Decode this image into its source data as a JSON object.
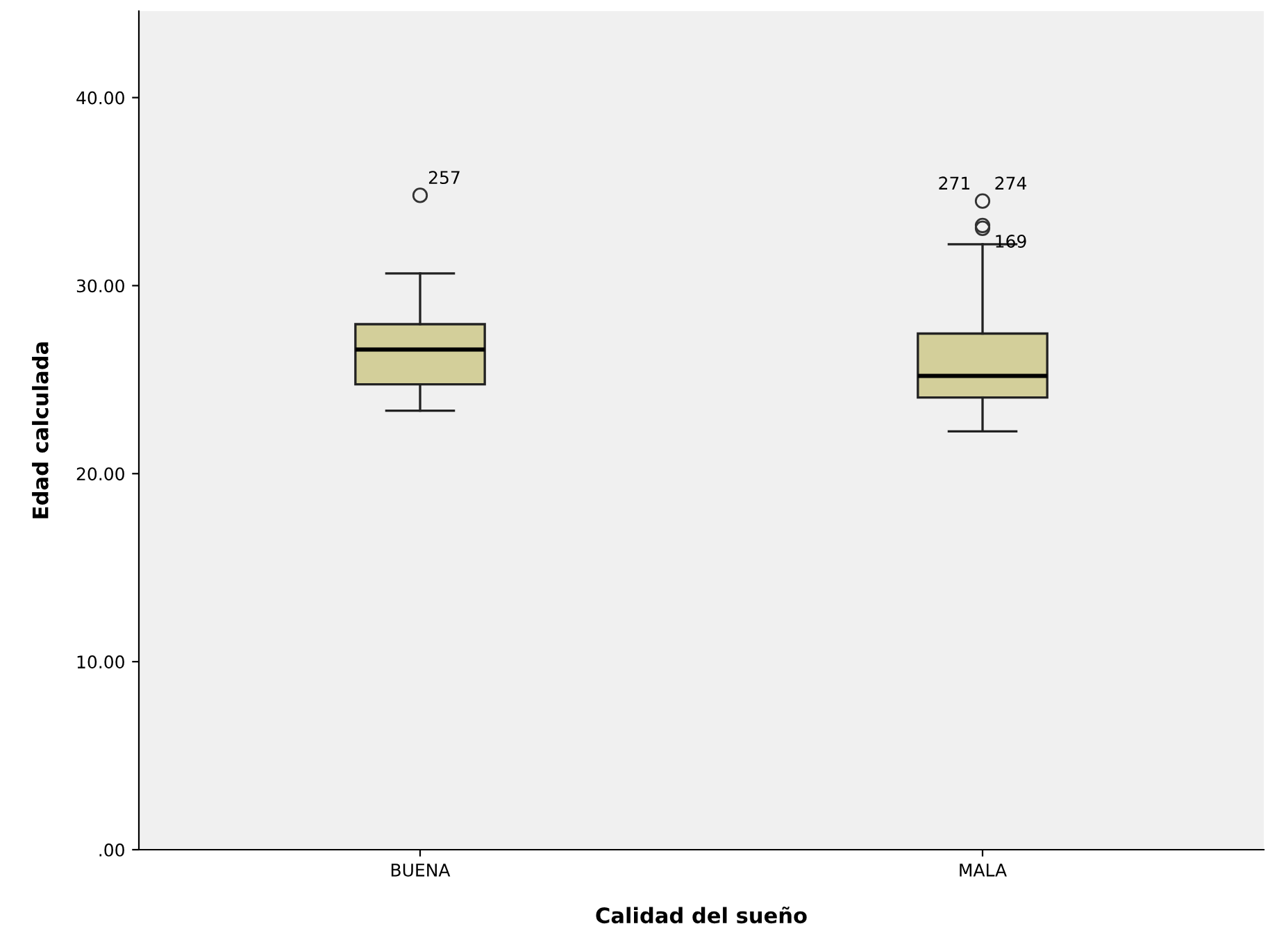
{
  "chart_data": {
    "type": "box",
    "xlabel": "Calidad del sueño",
    "ylabel": "Edad calculada",
    "categories": [
      "BUENA",
      "MALA"
    ],
    "color": "#d3cf9a",
    "boxes": [
      {
        "low": 23.35,
        "q1": 24.75,
        "median": 26.6,
        "q3": 27.95,
        "high": 30.65,
        "outliers": [
          34.8
        ]
      },
      {
        "low": 22.25,
        "q1": 24.05,
        "median": 25.2,
        "q3": 27.45,
        "high": 32.2,
        "outliers": [
          34.5,
          33.2,
          33.05
        ]
      }
    ],
    "ylim": [
      0,
      44.6
    ],
    "yticks": [
      {
        "value": 0,
        "label": ".00"
      },
      {
        "value": 10,
        "label": "10.00"
      },
      {
        "value": 20,
        "label": "20.00"
      },
      {
        "value": 30,
        "label": "30.00"
      },
      {
        "value": 40,
        "label": "40.00"
      }
    ],
    "grid": false,
    "annotations": [
      "257",
      "271",
      "274",
      "169"
    ]
  }
}
